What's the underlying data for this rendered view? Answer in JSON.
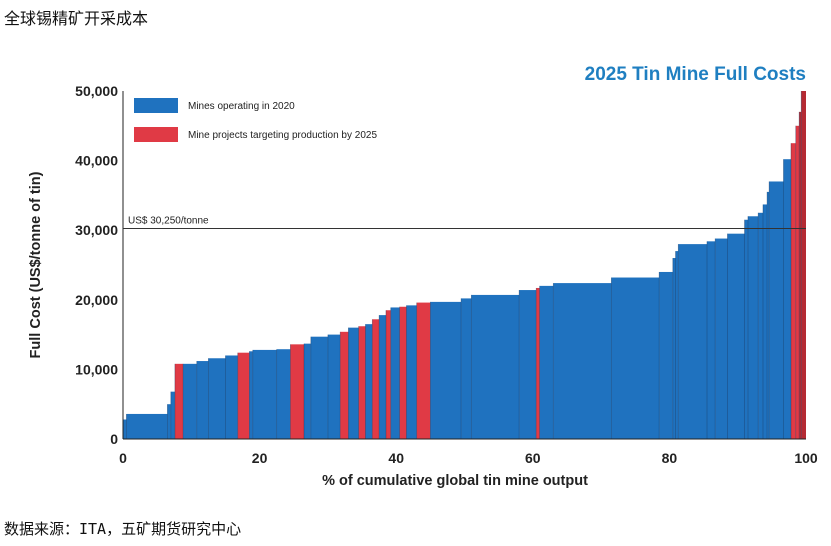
{
  "page": {
    "top_title": "全球锡精矿开采成本",
    "source": "数据来源：ITA，五矿期货研究中心"
  },
  "chart_data": {
    "type": "bar",
    "subtype": "cost-curve",
    "title": "2025 Tin Mine Full Costs",
    "xlabel": "% of cumulative global tin mine output",
    "ylabel": "Full Cost (US$/tonne of tin)",
    "xlim": [
      0,
      100
    ],
    "ylim": [
      0,
      50000
    ],
    "x_ticks": [
      "0",
      "20",
      "40",
      "60",
      "80",
      "100"
    ],
    "y_ticks": [
      "0",
      "10,000",
      "20,000",
      "30,000",
      "40,000",
      "50,000"
    ],
    "legend_position": "top-left",
    "grid": false,
    "colors": {
      "operating": "#1f72bf",
      "projects": "#e03a45",
      "reference_line": "#333333"
    },
    "legend": [
      {
        "key": "operating",
        "label": "Mines operating in 2020"
      },
      {
        "key": "projects",
        "label": "Mine projects targeting production by 2025"
      }
    ],
    "reference_line": {
      "value": 30250,
      "label": "US$ 30,250/tonne"
    },
    "segments": [
      {
        "x0": 0.0,
        "x1": 0.5,
        "y": 2800,
        "type": "operating"
      },
      {
        "x0": 0.5,
        "x1": 6.5,
        "y": 3600,
        "type": "operating"
      },
      {
        "x0": 6.5,
        "x1": 7.0,
        "y": 5000,
        "type": "operating"
      },
      {
        "x0": 7.0,
        "x1": 7.6,
        "y": 6800,
        "type": "operating"
      },
      {
        "x0": 7.6,
        "x1": 8.8,
        "y": 10800,
        "type": "projects"
      },
      {
        "x0": 8.8,
        "x1": 10.8,
        "y": 10800,
        "type": "operating"
      },
      {
        "x0": 10.8,
        "x1": 12.5,
        "y": 11200,
        "type": "operating"
      },
      {
        "x0": 12.5,
        "x1": 15.0,
        "y": 11600,
        "type": "operating"
      },
      {
        "x0": 15.0,
        "x1": 16.8,
        "y": 12000,
        "type": "operating"
      },
      {
        "x0": 16.8,
        "x1": 18.5,
        "y": 12400,
        "type": "projects"
      },
      {
        "x0": 18.5,
        "x1": 19.0,
        "y": 12600,
        "type": "operating"
      },
      {
        "x0": 19.0,
        "x1": 22.5,
        "y": 12800,
        "type": "operating"
      },
      {
        "x0": 22.5,
        "x1": 24.5,
        "y": 12900,
        "type": "operating"
      },
      {
        "x0": 24.5,
        "x1": 26.5,
        "y": 13600,
        "type": "projects"
      },
      {
        "x0": 26.5,
        "x1": 27.5,
        "y": 13700,
        "type": "operating"
      },
      {
        "x0": 27.5,
        "x1": 30.0,
        "y": 14700,
        "type": "operating"
      },
      {
        "x0": 30.0,
        "x1": 31.8,
        "y": 15000,
        "type": "operating"
      },
      {
        "x0": 31.8,
        "x1": 33.0,
        "y": 15400,
        "type": "projects"
      },
      {
        "x0": 33.0,
        "x1": 34.5,
        "y": 16000,
        "type": "operating"
      },
      {
        "x0": 34.5,
        "x1": 35.5,
        "y": 16200,
        "type": "projects"
      },
      {
        "x0": 35.5,
        "x1": 36.5,
        "y": 16500,
        "type": "operating"
      },
      {
        "x0": 36.5,
        "x1": 37.5,
        "y": 17200,
        "type": "projects"
      },
      {
        "x0": 37.5,
        "x1": 38.5,
        "y": 17800,
        "type": "operating"
      },
      {
        "x0": 38.5,
        "x1": 39.2,
        "y": 18500,
        "type": "projects"
      },
      {
        "x0": 39.2,
        "x1": 40.5,
        "y": 18900,
        "type": "operating"
      },
      {
        "x0": 40.5,
        "x1": 41.5,
        "y": 19000,
        "type": "projects"
      },
      {
        "x0": 41.5,
        "x1": 43.0,
        "y": 19200,
        "type": "operating"
      },
      {
        "x0": 43.0,
        "x1": 45.0,
        "y": 19600,
        "type": "projects"
      },
      {
        "x0": 45.0,
        "x1": 49.5,
        "y": 19700,
        "type": "operating"
      },
      {
        "x0": 49.5,
        "x1": 51.0,
        "y": 20200,
        "type": "operating"
      },
      {
        "x0": 51.0,
        "x1": 58.0,
        "y": 20700,
        "type": "operating"
      },
      {
        "x0": 58.0,
        "x1": 60.5,
        "y": 21400,
        "type": "operating"
      },
      {
        "x0": 60.5,
        "x1": 61.0,
        "y": 21700,
        "type": "projects"
      },
      {
        "x0": 61.0,
        "x1": 63.0,
        "y": 22000,
        "type": "operating"
      },
      {
        "x0": 63.0,
        "x1": 71.5,
        "y": 22400,
        "type": "operating"
      },
      {
        "x0": 71.5,
        "x1": 78.5,
        "y": 23200,
        "type": "operating"
      },
      {
        "x0": 78.5,
        "x1": 80.5,
        "y": 24000,
        "type": "operating"
      },
      {
        "x0": 80.5,
        "x1": 80.9,
        "y": 26000,
        "type": "operating"
      },
      {
        "x0": 80.9,
        "x1": 81.3,
        "y": 27000,
        "type": "operating"
      },
      {
        "x0": 81.3,
        "x1": 85.5,
        "y": 28000,
        "type": "operating"
      },
      {
        "x0": 85.5,
        "x1": 86.7,
        "y": 28400,
        "type": "operating"
      },
      {
        "x0": 86.7,
        "x1": 88.5,
        "y": 28800,
        "type": "operating"
      },
      {
        "x0": 88.5,
        "x1": 91.0,
        "y": 29500,
        "type": "operating"
      },
      {
        "x0": 91.0,
        "x1": 91.5,
        "y": 31500,
        "type": "operating"
      },
      {
        "x0": 91.5,
        "x1": 93.0,
        "y": 32000,
        "type": "operating"
      },
      {
        "x0": 93.0,
        "x1": 93.7,
        "y": 32500,
        "type": "operating"
      },
      {
        "x0": 93.7,
        "x1": 94.3,
        "y": 33700,
        "type": "operating"
      },
      {
        "x0": 94.3,
        "x1": 94.6,
        "y": 35500,
        "type": "operating"
      },
      {
        "x0": 94.6,
        "x1": 96.7,
        "y": 37000,
        "type": "operating"
      },
      {
        "x0": 96.7,
        "x1": 97.8,
        "y": 40200,
        "type": "operating"
      },
      {
        "x0": 97.8,
        "x1": 98.5,
        "y": 42500,
        "type": "projects"
      },
      {
        "x0": 98.5,
        "x1": 99.0,
        "y": 45000,
        "type": "projects"
      },
      {
        "x0": 99.0,
        "x1": 99.3,
        "y": 47000,
        "type": "projects"
      },
      {
        "x0": 99.3,
        "x1": 100.0,
        "y": 50000,
        "type": "projects"
      }
    ]
  }
}
